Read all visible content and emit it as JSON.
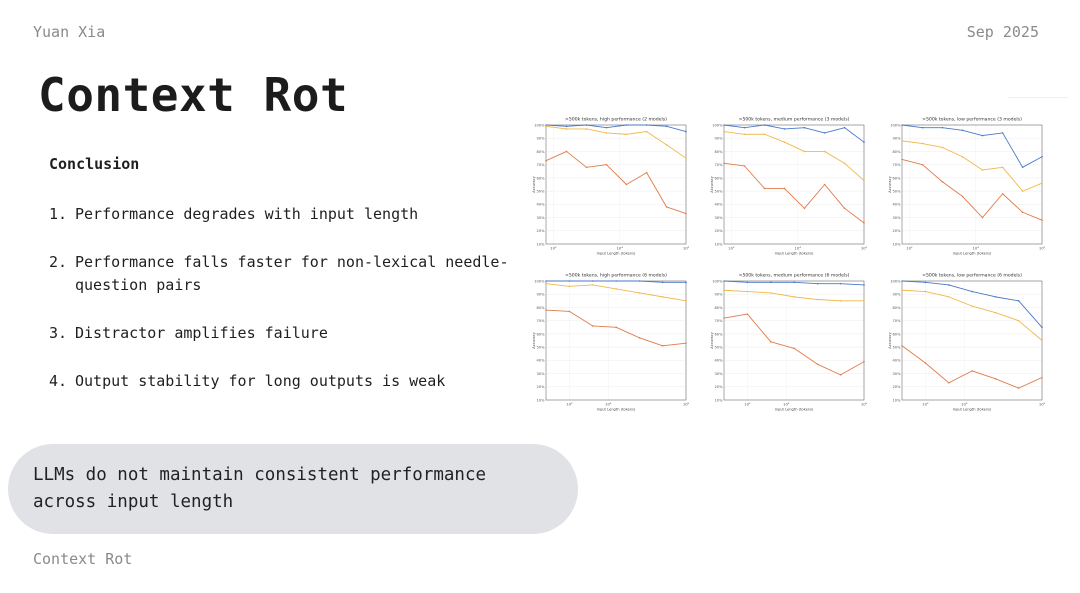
{
  "header": {
    "author": "Yuan Xia",
    "date": "Sep 2025"
  },
  "slide": {
    "title": "Context Rot",
    "footer": "Context Rot"
  },
  "conclusion": {
    "heading": "Conclusion",
    "points": [
      {
        "num": "1.",
        "text": "Performance degrades with input length"
      },
      {
        "num": "2.",
        "text": "Performance falls faster for non-lexical needle-question pairs"
      },
      {
        "num": "3.",
        "text": "Distractor amplifies failure"
      },
      {
        "num": "4.",
        "text": "Output stability for long outputs is weak"
      }
    ]
  },
  "callout": {
    "text": "LLMs do not maintain consistent performance across input length"
  },
  "colors": {
    "blue": "#4a78c8",
    "yellow": "#f0b84c",
    "orange": "#e07b4a"
  },
  "chart_data": [
    {
      "type": "line",
      "title": ">500k tokens, high performance (2 models)",
      "xlabel": "Input Length (tokens)",
      "ylabel": "Accuracy",
      "xscale": "log",
      "xlim": [
        60,
        1000000
      ],
      "ylim": [
        0.1,
        1.0
      ],
      "xticks": [
        {
          "value": 100,
          "label": "10²"
        },
        {
          "value": 10000,
          "label": "10⁴"
        },
        {
          "value": 1000000,
          "label": "10⁶"
        }
      ],
      "yticks": [
        "10%",
        "20%",
        "30%",
        "40%",
        "50%",
        "60%",
        "70%",
        "80%",
        "90%",
        "100%"
      ],
      "series": [
        {
          "color": "blue",
          "x": [
            60,
            250,
            1000,
            4000,
            16000,
            65000,
            260000,
            1000000
          ],
          "y": [
            1.0,
            0.99,
            1.0,
            0.98,
            1.0,
            1.0,
            0.99,
            0.95
          ]
        },
        {
          "color": "yellow",
          "x": [
            60,
            250,
            1000,
            4000,
            16000,
            65000,
            260000,
            1000000
          ],
          "y": [
            0.99,
            0.97,
            0.97,
            0.94,
            0.93,
            0.95,
            0.85,
            0.75
          ]
        },
        {
          "color": "orange",
          "x": [
            60,
            250,
            1000,
            4000,
            16000,
            65000,
            260000,
            1000000
          ],
          "y": [
            0.73,
            0.8,
            0.68,
            0.7,
            0.55,
            0.64,
            0.38,
            0.33
          ]
        }
      ]
    },
    {
      "type": "line",
      "title": ">500k tokens, medium performance (3 models)",
      "xlabel": "Input Length (tokens)",
      "ylabel": "Accuracy",
      "xscale": "log",
      "xlim": [
        60,
        1000000
      ],
      "ylim": [
        0.1,
        1.0
      ],
      "xticks": [
        {
          "value": 100,
          "label": "10²"
        },
        {
          "value": 10000,
          "label": "10⁴"
        },
        {
          "value": 1000000,
          "label": "10⁶"
        }
      ],
      "yticks": [
        "10%",
        "20%",
        "30%",
        "40%",
        "50%",
        "60%",
        "70%",
        "80%",
        "90%",
        "100%"
      ],
      "series": [
        {
          "color": "blue",
          "x": [
            60,
            250,
            1000,
            4000,
            16000,
            65000,
            260000,
            1000000
          ],
          "y": [
            1.0,
            0.98,
            1.0,
            0.97,
            0.98,
            0.94,
            0.98,
            0.87
          ]
        },
        {
          "color": "yellow",
          "x": [
            60,
            250,
            1000,
            4000,
            16000,
            65000,
            260000,
            1000000
          ],
          "y": [
            0.95,
            0.93,
            0.93,
            0.87,
            0.8,
            0.8,
            0.71,
            0.58
          ]
        },
        {
          "color": "orange",
          "x": [
            60,
            250,
            1000,
            4000,
            16000,
            65000,
            260000,
            1000000
          ],
          "y": [
            0.71,
            0.69,
            0.52,
            0.52,
            0.37,
            0.55,
            0.37,
            0.26
          ]
        }
      ]
    },
    {
      "type": "line",
      "title": ">500k tokens, low performance (3 models)",
      "xlabel": "Input Length (tokens)",
      "ylabel": "Accuracy",
      "xscale": "log",
      "xlim": [
        60,
        1000000
      ],
      "ylim": [
        0.1,
        1.0
      ],
      "xticks": [
        {
          "value": 100,
          "label": "10²"
        },
        {
          "value": 10000,
          "label": "10⁴"
        },
        {
          "value": 1000000,
          "label": "10⁶"
        }
      ],
      "yticks": [
        "10%",
        "20%",
        "30%",
        "40%",
        "50%",
        "60%",
        "70%",
        "80%",
        "90%",
        "100%"
      ],
      "series": [
        {
          "color": "blue",
          "x": [
            60,
            250,
            1000,
            4000,
            16000,
            65000,
            260000,
            1000000
          ],
          "y": [
            1.0,
            0.98,
            0.98,
            0.96,
            0.92,
            0.94,
            0.68,
            0.76
          ]
        },
        {
          "color": "yellow",
          "x": [
            60,
            250,
            1000,
            4000,
            16000,
            65000,
            260000,
            1000000
          ],
          "y": [
            0.88,
            0.86,
            0.83,
            0.76,
            0.66,
            0.68,
            0.5,
            0.56
          ]
        },
        {
          "color": "orange",
          "x": [
            60,
            250,
            1000,
            4000,
            16000,
            65000,
            260000,
            1000000
          ],
          "y": [
            0.74,
            0.7,
            0.57,
            0.46,
            0.3,
            0.48,
            0.34,
            0.28
          ]
        }
      ]
    },
    {
      "type": "line",
      "title": "<500k tokens, high performance (6 models)",
      "xlabel": "Input Length (tokens)",
      "ylabel": "Accuracy",
      "xscale": "log",
      "xlim": [
        25,
        100000
      ],
      "ylim": [
        0.1,
        1.0
      ],
      "xticks": [
        {
          "value": 100,
          "label": "10²"
        },
        {
          "value": 1000,
          "label": "10³"
        },
        {
          "value": 100000,
          "label": "10⁵"
        }
      ],
      "yticks": [
        "10%",
        "20%",
        "30%",
        "40%",
        "50%",
        "60%",
        "70%",
        "80%",
        "90%",
        "100%"
      ],
      "series": [
        {
          "color": "blue",
          "x": [
            25,
            100,
            400,
            1600,
            6400,
            25000,
            100000
          ],
          "y": [
            1.0,
            1.0,
            1.0,
            1.0,
            1.0,
            0.99,
            0.99
          ]
        },
        {
          "color": "yellow",
          "x": [
            25,
            100,
            400,
            1600,
            6400,
            25000,
            100000
          ],
          "y": [
            0.98,
            0.96,
            0.97,
            0.94,
            0.91,
            0.88,
            0.85
          ]
        },
        {
          "color": "orange",
          "x": [
            25,
            100,
            400,
            1600,
            6400,
            25000,
            100000
          ],
          "y": [
            0.78,
            0.77,
            0.66,
            0.65,
            0.57,
            0.51,
            0.53
          ]
        }
      ]
    },
    {
      "type": "line",
      "title": "<500k tokens, medium performance (6 models)",
      "xlabel": "Input Length (tokens)",
      "ylabel": "Accuracy",
      "xscale": "log",
      "xlim": [
        25,
        100000
      ],
      "ylim": [
        0.1,
        1.0
      ],
      "xticks": [
        {
          "value": 100,
          "label": "10²"
        },
        {
          "value": 1000,
          "label": "10³"
        },
        {
          "value": 100000,
          "label": "10⁵"
        }
      ],
      "yticks": [
        "10%",
        "20%",
        "30%",
        "40%",
        "50%",
        "60%",
        "70%",
        "80%",
        "90%",
        "100%"
      ],
      "series": [
        {
          "color": "blue",
          "x": [
            25,
            100,
            400,
            1600,
            6400,
            25000,
            100000
          ],
          "y": [
            1.0,
            0.99,
            0.99,
            0.99,
            0.98,
            0.98,
            0.97
          ]
        },
        {
          "color": "yellow",
          "x": [
            25,
            100,
            400,
            1600,
            6400,
            25000,
            100000
          ],
          "y": [
            0.93,
            0.92,
            0.91,
            0.88,
            0.86,
            0.85,
            0.85
          ]
        },
        {
          "color": "orange",
          "x": [
            25,
            100,
            400,
            1600,
            6400,
            25000,
            100000
          ],
          "y": [
            0.72,
            0.75,
            0.54,
            0.49,
            0.37,
            0.29,
            0.39
          ]
        }
      ]
    },
    {
      "type": "line",
      "title": "<500k tokens, low performance (6 models)",
      "xlabel": "Input Length (tokens)",
      "ylabel": "Accuracy",
      "xscale": "log",
      "xlim": [
        25,
        100000
      ],
      "ylim": [
        0.1,
        1.0
      ],
      "xticks": [
        {
          "value": 100,
          "label": "10²"
        },
        {
          "value": 1000,
          "label": "10³"
        },
        {
          "value": 100000,
          "label": "10⁵"
        }
      ],
      "yticks": [
        "10%",
        "20%",
        "30%",
        "40%",
        "50%",
        "60%",
        "70%",
        "80%",
        "90%",
        "100%"
      ],
      "series": [
        {
          "color": "blue",
          "x": [
            25,
            100,
            400,
            1600,
            6400,
            25000,
            100000
          ],
          "y": [
            1.0,
            0.99,
            0.97,
            0.92,
            0.88,
            0.85,
            0.65
          ]
        },
        {
          "color": "yellow",
          "x": [
            25,
            100,
            400,
            1600,
            6400,
            25000,
            100000
          ],
          "y": [
            0.93,
            0.92,
            0.88,
            0.81,
            0.76,
            0.7,
            0.55
          ]
        },
        {
          "color": "orange",
          "x": [
            25,
            100,
            400,
            1600,
            6400,
            25000,
            100000
          ],
          "y": [
            0.51,
            0.38,
            0.23,
            0.32,
            0.26,
            0.19,
            0.27
          ]
        }
      ]
    }
  ]
}
